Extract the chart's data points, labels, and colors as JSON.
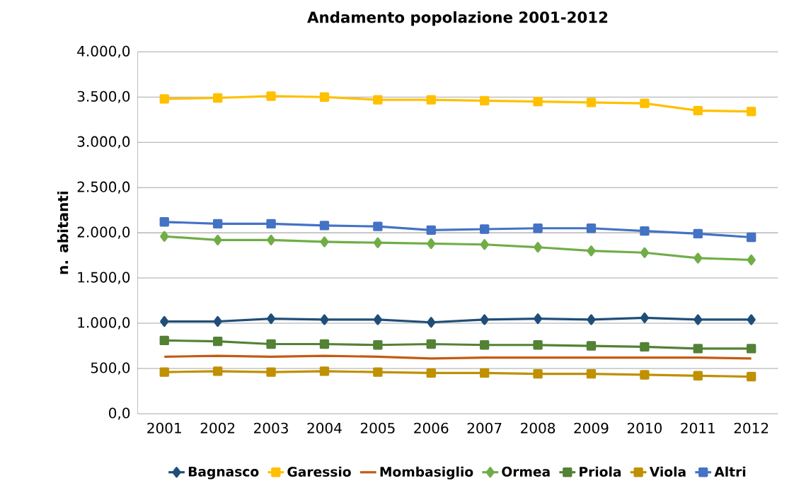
{
  "chart_data": {
    "type": "line",
    "title": "Andamento popolazione 2001-2012",
    "ylabel": "n. abitanti",
    "categories": [
      "2001",
      "2002",
      "2003",
      "2004",
      "2005",
      "2006",
      "2007",
      "2008",
      "2009",
      "2010",
      "2011",
      "2012"
    ],
    "ylim": [
      0,
      4000
    ],
    "yticks": [
      {
        "value": 0,
        "label": "0,0"
      },
      {
        "value": 500,
        "label": "500,0"
      },
      {
        "value": 1000,
        "label": "1.000,0"
      },
      {
        "value": 1500,
        "label": "1.500,0"
      },
      {
        "value": 2000,
        "label": "2.000,0"
      },
      {
        "value": 2500,
        "label": "2.500,0"
      },
      {
        "value": 3000,
        "label": "3.000,0"
      },
      {
        "value": 3500,
        "label": "3.500,0"
      },
      {
        "value": 4000,
        "label": "4.000,0"
      }
    ],
    "grid": "y",
    "legend": "bottom",
    "series": [
      {
        "name": "Bagnasco",
        "color": "#1f4e79",
        "marker": "diamond",
        "values": [
          1020,
          1020,
          1050,
          1040,
          1040,
          1010,
          1040,
          1050,
          1040,
          1060,
          1040,
          1040
        ]
      },
      {
        "name": "Garessio",
        "color": "#ffc000",
        "marker": "square",
        "values": [
          3480,
          3490,
          3510,
          3500,
          3470,
          3470,
          3460,
          3450,
          3440,
          3430,
          3350,
          3340
        ]
      },
      {
        "name": "Mombasiglio",
        "color": "#c55a11",
        "marker": "none",
        "values": [
          630,
          640,
          630,
          640,
          630,
          610,
          620,
          620,
          620,
          620,
          620,
          610
        ]
      },
      {
        "name": "Ormea",
        "color": "#70ad47",
        "marker": "diamond",
        "values": [
          1960,
          1920,
          1920,
          1900,
          1890,
          1880,
          1870,
          1840,
          1800,
          1780,
          1720,
          1700
        ]
      },
      {
        "name": "Priola",
        "color": "#538135",
        "marker": "square",
        "values": [
          810,
          800,
          770,
          770,
          760,
          770,
          760,
          760,
          750,
          740,
          720,
          720
        ]
      },
      {
        "name": "Viola",
        "color": "#bf9000",
        "marker": "square",
        "values": [
          460,
          470,
          460,
          470,
          460,
          450,
          450,
          440,
          440,
          430,
          420,
          410
        ]
      },
      {
        "name": "Altri",
        "color": "#4472c4",
        "marker": "square",
        "values": [
          2120,
          2100,
          2100,
          2080,
          2070,
          2030,
          2040,
          2050,
          2050,
          2020,
          1990,
          1950
        ]
      }
    ]
  }
}
